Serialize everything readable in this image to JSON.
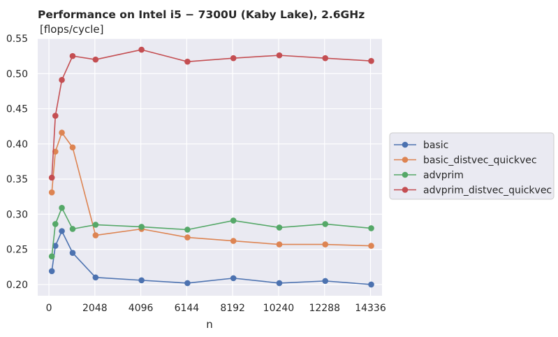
{
  "chart_data": {
    "type": "line",
    "title": "Performance on Intel i5 − 7300U (Kaby Lake),  2.6GHz",
    "ylabel_note": "[flops/cycle]",
    "xlabel": "n",
    "xlim": [
      -500,
      14850
    ],
    "ylim": [
      0.184,
      0.55
    ],
    "xticks": [
      0,
      2048,
      4096,
      6144,
      8192,
      10240,
      12288,
      14336
    ],
    "yticks": [
      0.2,
      0.25,
      0.3,
      0.35,
      0.4,
      0.45,
      0.5,
      0.55
    ],
    "ytick_labels": [
      "0.20",
      "0.25",
      "0.30",
      "0.35",
      "0.40",
      "0.45",
      "0.50",
      "0.55"
    ],
    "grid": true,
    "legend_position": "right",
    "x": [
      128,
      288,
      576,
      1056,
      2080,
      4128,
      6176,
      8224,
      10272,
      12320,
      14368
    ],
    "series": [
      {
        "name": "basic",
        "color": "#4c72b0",
        "values": [
          0.219,
          0.255,
          0.276,
          0.245,
          0.21,
          0.206,
          0.202,
          0.209,
          0.202,
          0.205,
          0.2
        ]
      },
      {
        "name": "basic_distvec_quickvec",
        "color": "#dd8452",
        "values": [
          0.331,
          0.389,
          0.416,
          0.395,
          0.27,
          0.279,
          0.267,
          0.262,
          0.257,
          0.257,
          0.255
        ]
      },
      {
        "name": "advprim",
        "color": "#55a868",
        "values": [
          0.24,
          0.286,
          0.309,
          0.279,
          0.285,
          0.282,
          0.278,
          0.291,
          0.281,
          0.286,
          0.28
        ]
      },
      {
        "name": "advprim_distvec_quickvec",
        "color": "#c44e52",
        "values": [
          0.352,
          0.44,
          0.491,
          0.525,
          0.52,
          0.534,
          0.517,
          0.522,
          0.526,
          0.522,
          0.518
        ]
      }
    ]
  }
}
